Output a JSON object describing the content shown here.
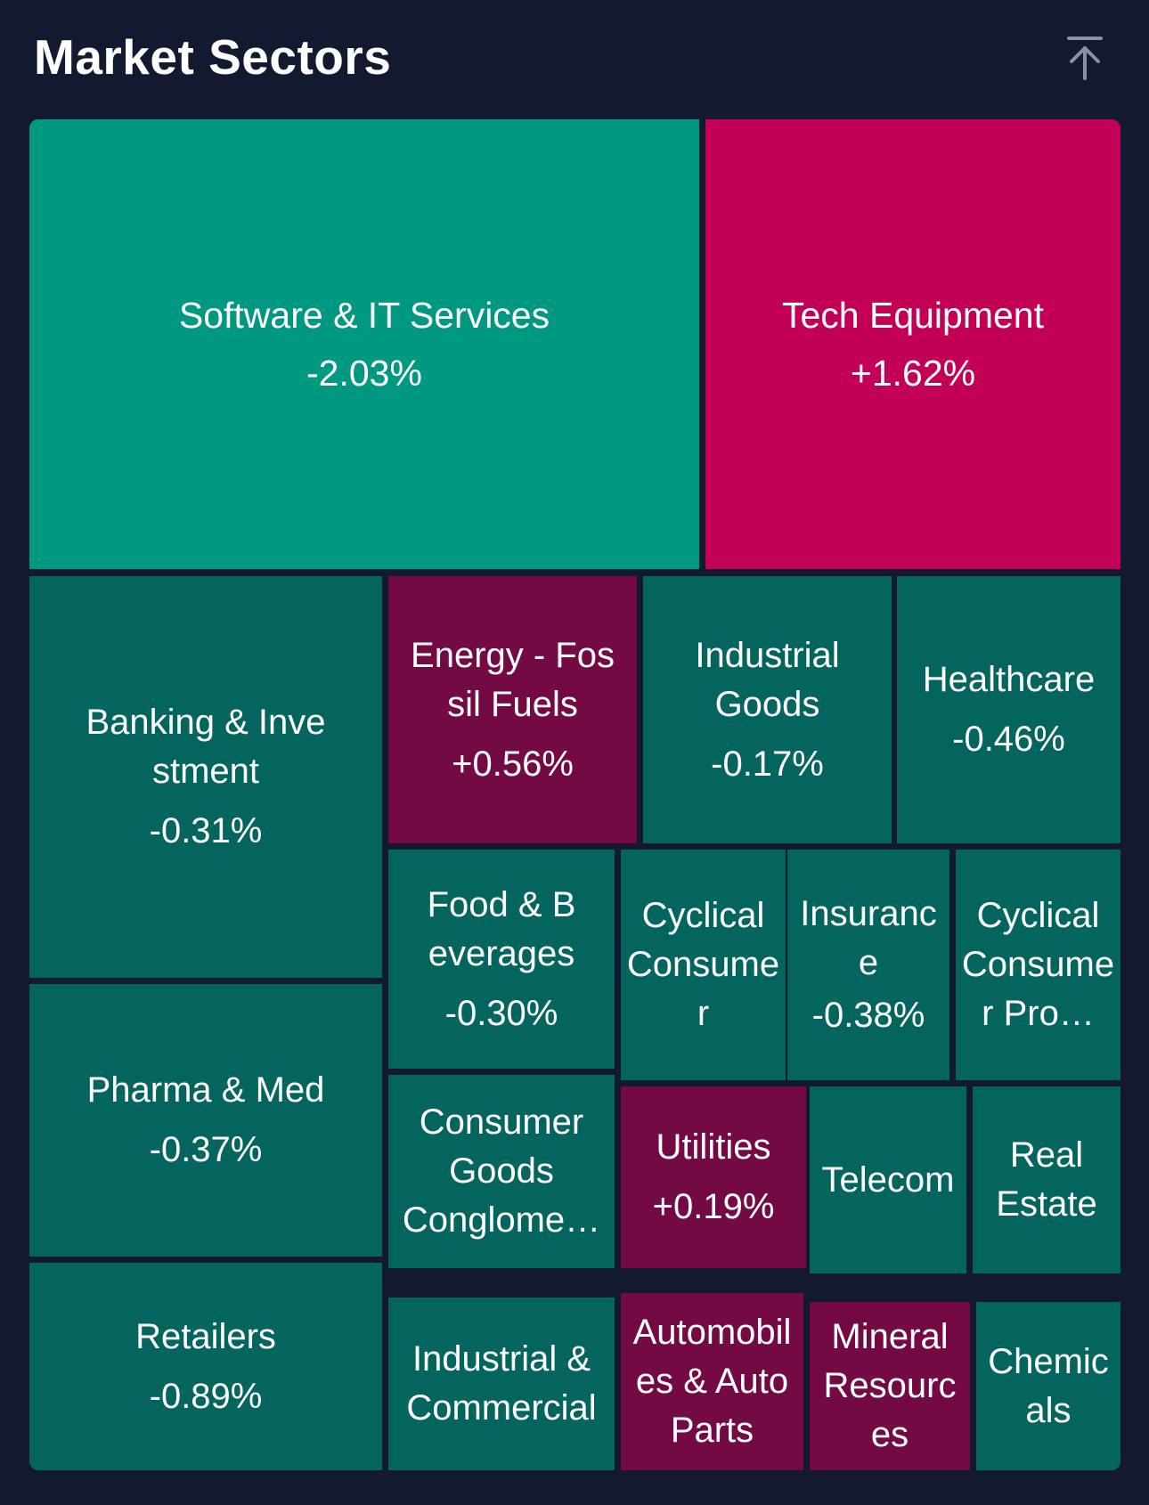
{
  "header": {
    "title": "Market Sectors",
    "collapse_icon": "arrow-up-to-line-icon"
  },
  "colors": {
    "background": "#131a30",
    "down_strong": "#009880",
    "down": "#03655e",
    "up_strong": "#c20055",
    "up": "#740a43"
  },
  "sectors": [
    {
      "name": "Software & IT Services",
      "change": "-2.03%"
    },
    {
      "name": "Tech Equipment",
      "change": "+1.62%"
    },
    {
      "name": "Banking & Investment",
      "change": "-0.31%"
    },
    {
      "name": "Energy - Fossil Fuels",
      "change": "+0.56%"
    },
    {
      "name": "Industrial Goods",
      "change": "-0.17%"
    },
    {
      "name": "Healthcare",
      "change": "-0.46%"
    },
    {
      "name": "Pharma & Med",
      "change": "-0.37%"
    },
    {
      "name": "Food & Beverages",
      "change": "-0.30%"
    },
    {
      "name": "Cyclical Consumer",
      "change": ""
    },
    {
      "name": "Insurance",
      "change": "-0.38%"
    },
    {
      "name": "Cyclical Consumer Pro…",
      "change": ""
    },
    {
      "name": "Consumer Goods Conglome…",
      "change": ""
    },
    {
      "name": "Utilities",
      "change": "+0.19%"
    },
    {
      "name": "Telecom",
      "change": ""
    },
    {
      "name": "Real Estate",
      "change": ""
    },
    {
      "name": "Retailers",
      "change": "-0.89%"
    },
    {
      "name": "Industrial & Commercial",
      "change": ""
    },
    {
      "name": "Automobiles & Auto Parts",
      "change": ""
    },
    {
      "name": "Mineral Resources",
      "change": ""
    },
    {
      "name": "Chemicals",
      "change": ""
    }
  ]
}
